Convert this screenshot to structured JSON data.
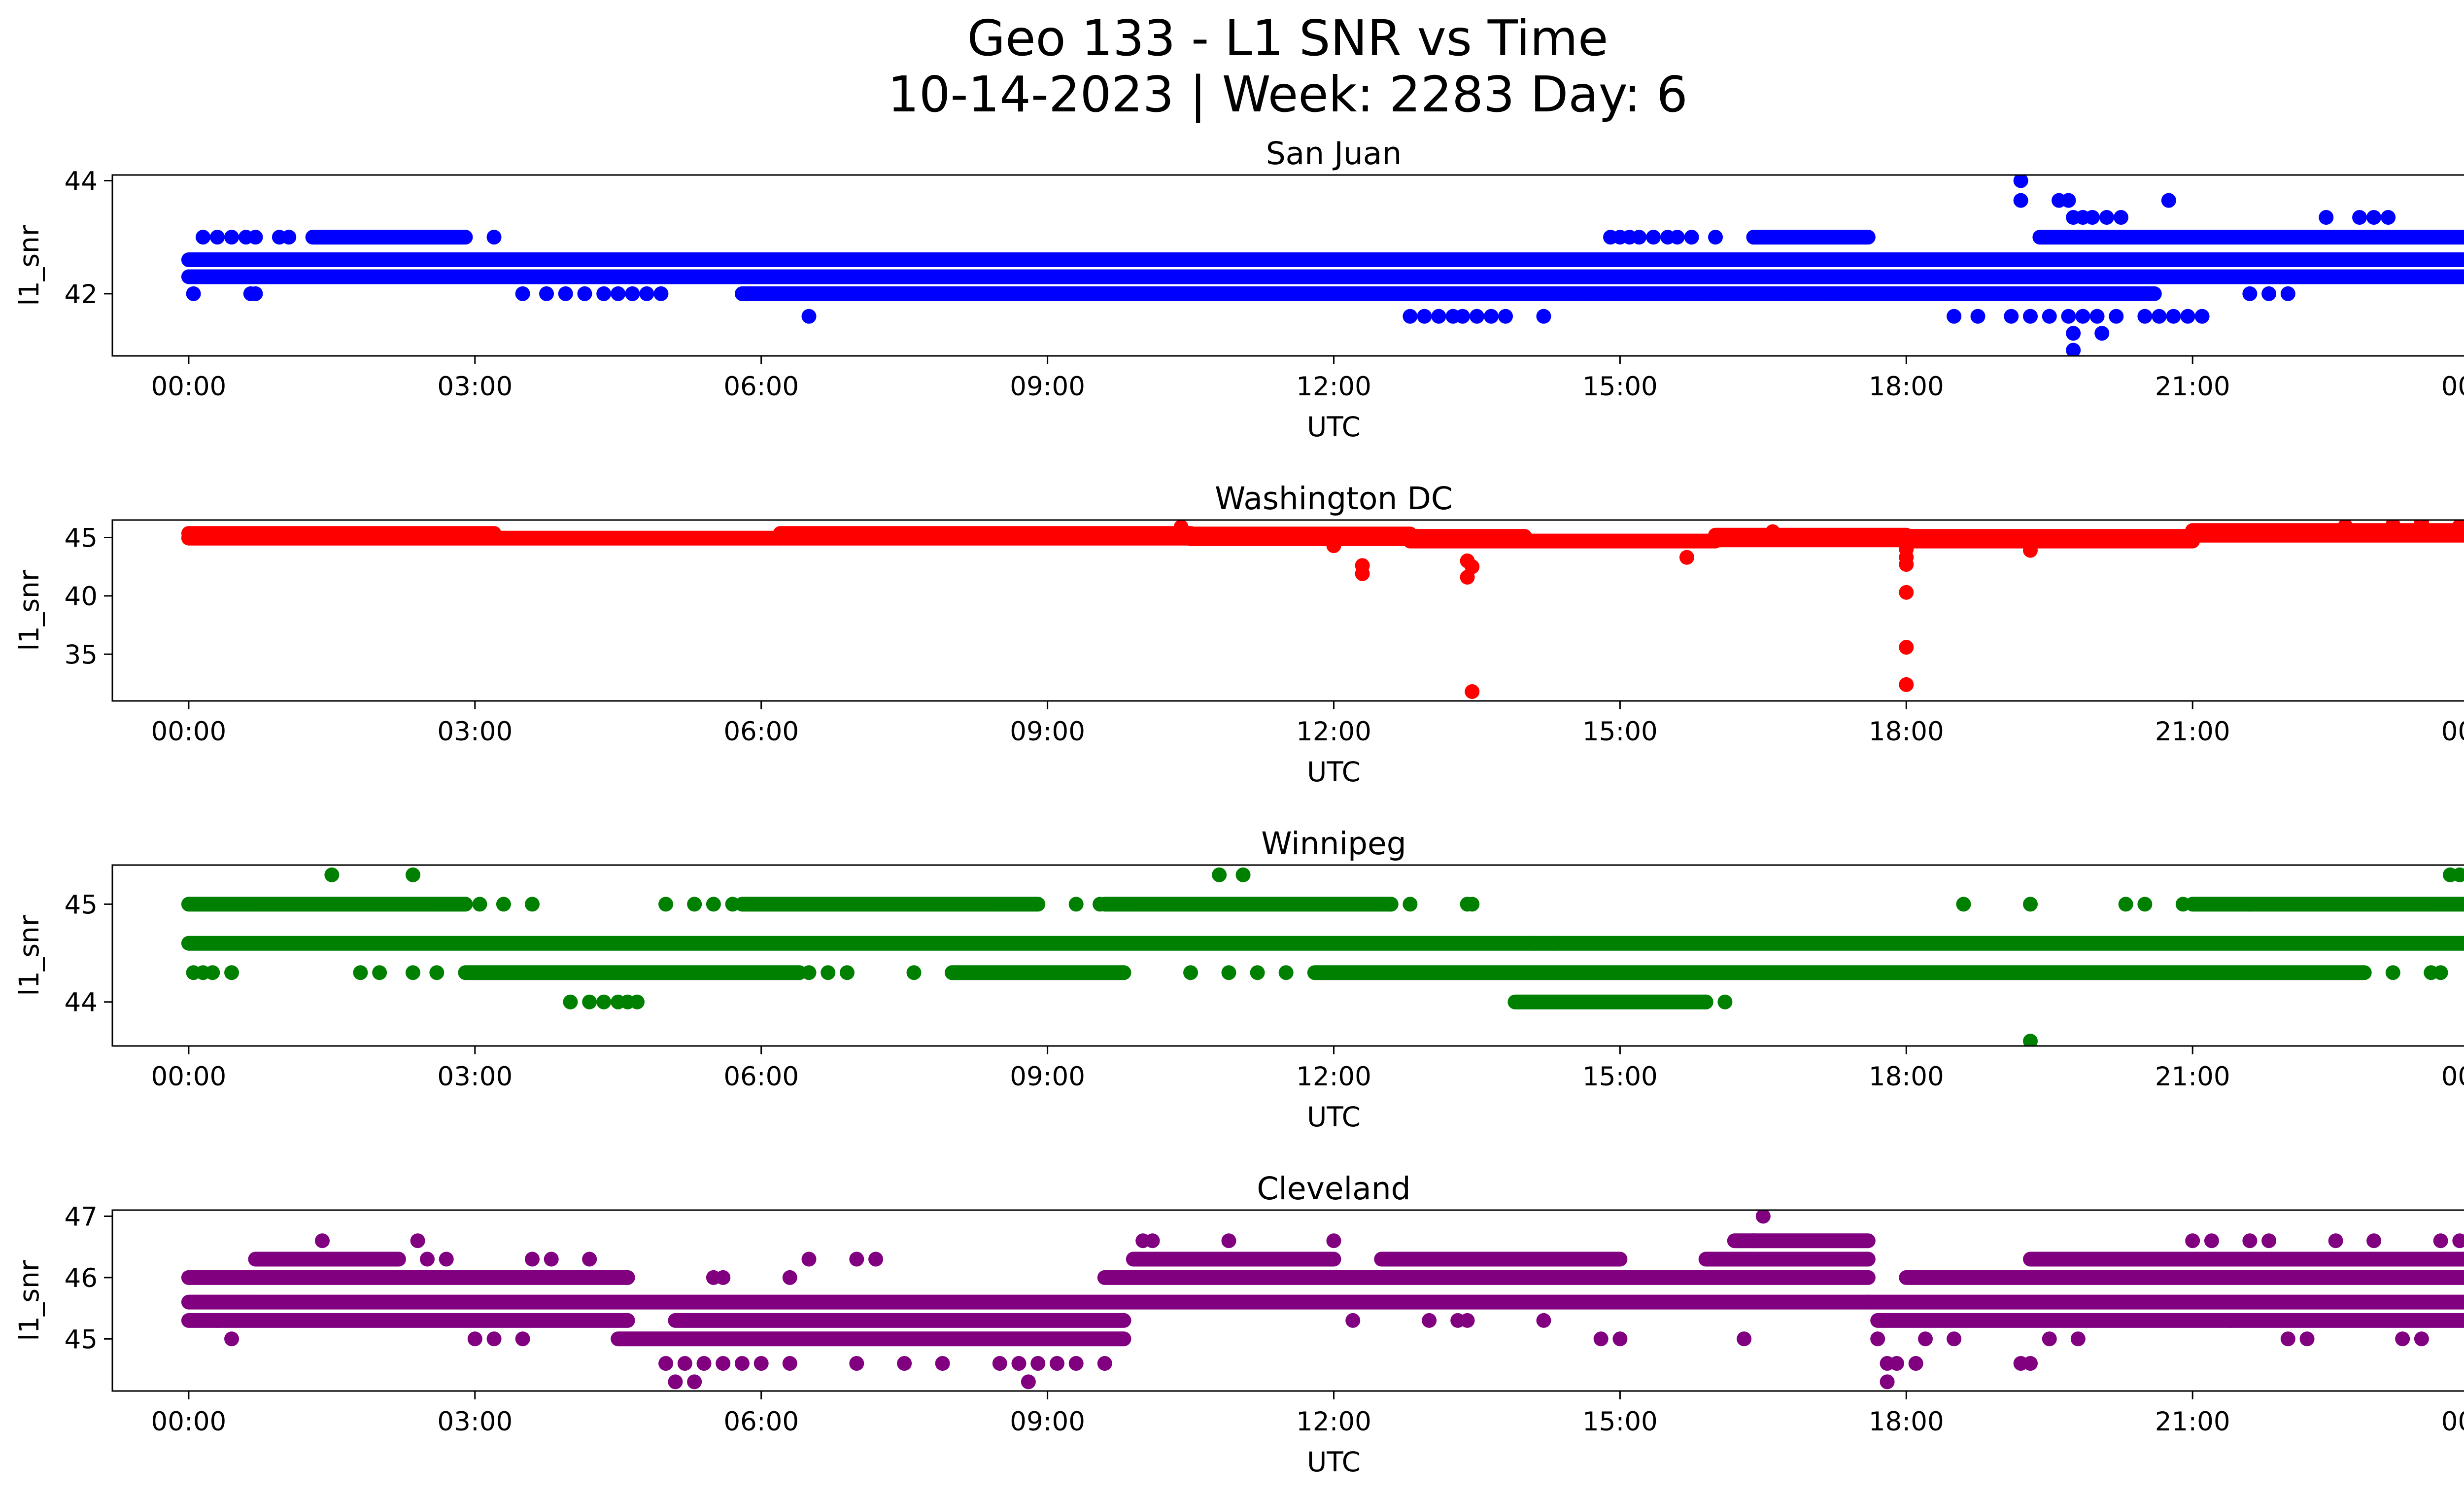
{
  "figure": {
    "title_line1": "Geo 133 - L1 SNR vs Time",
    "title_line2": "10-14-2023 | Week: 2283 Day: 6"
  },
  "chart_data": [
    {
      "type": "scatter",
      "title": "San Juan",
      "xlabel": "UTC",
      "ylabel": "l1_snr",
      "color": "#0000ff",
      "xlim": [
        -0.8,
        24.8
      ],
      "ylim": [
        40.9,
        44.1
      ],
      "xticks": [
        "00:00",
        "03:00",
        "06:00",
        "09:00",
        "12:00",
        "15:00",
        "18:00",
        "21:00",
        "00:00"
      ],
      "yticks": [
        42,
        44
      ],
      "bands": [
        {
          "y": 42.6,
          "from": 0.0,
          "to": 24.0
        },
        {
          "y": 42.3,
          "from": 0.0,
          "to": 24.0
        },
        {
          "y": 42.0,
          "from": 5.8,
          "to": 17.3
        },
        {
          "y": 42.0,
          "from": 17.3,
          "to": 20.6
        },
        {
          "y": 43.0,
          "from": 1.3,
          "to": 2.9
        },
        {
          "y": 43.0,
          "from": 16.4,
          "to": 17.6
        },
        {
          "y": 43.0,
          "from": 19.4,
          "to": 24.0
        }
      ],
      "points": [
        [
          0.05,
          42.0
        ],
        [
          0.15,
          43.0
        ],
        [
          0.3,
          43.0
        ],
        [
          0.45,
          43.0
        ],
        [
          0.6,
          43.0
        ],
        [
          0.7,
          43.0
        ],
        [
          0.65,
          42.0
        ],
        [
          0.7,
          42.0
        ],
        [
          0.95,
          43.0
        ],
        [
          1.05,
          43.0
        ],
        [
          3.2,
          43.0
        ],
        [
          3.5,
          42.0
        ],
        [
          3.75,
          42.0
        ],
        [
          3.95,
          42.0
        ],
        [
          4.15,
          42.0
        ],
        [
          4.35,
          42.0
        ],
        [
          4.5,
          42.0
        ],
        [
          4.65,
          42.0
        ],
        [
          4.8,
          42.0
        ],
        [
          4.95,
          42.0
        ],
        [
          6.5,
          41.6
        ],
        [
          6.55,
          42.6
        ],
        [
          6.65,
          42.6
        ],
        [
          6.8,
          42.6
        ],
        [
          7.1,
          42.6
        ],
        [
          7.5,
          42.6
        ],
        [
          7.8,
          42.6
        ],
        [
          8.2,
          42.6
        ],
        [
          8.4,
          42.6
        ],
        [
          8.7,
          42.6
        ],
        [
          9.5,
          42.6
        ],
        [
          9.7,
          42.6
        ],
        [
          10.0,
          42.6
        ],
        [
          10.2,
          42.6
        ],
        [
          10.35,
          42.6
        ],
        [
          11.2,
          42.6
        ],
        [
          11.4,
          42.6
        ],
        [
          11.55,
          42.6
        ],
        [
          11.8,
          42.6
        ],
        [
          12.2,
          42.6
        ],
        [
          12.8,
          41.6
        ],
        [
          12.95,
          41.6
        ],
        [
          13.1,
          41.6
        ],
        [
          13.25,
          41.6
        ],
        [
          13.35,
          41.6
        ],
        [
          13.5,
          41.6
        ],
        [
          13.65,
          41.6
        ],
        [
          13.8,
          41.6
        ],
        [
          14.2,
          41.6
        ],
        [
          13.3,
          42.6
        ],
        [
          13.5,
          42.6
        ],
        [
          13.8,
          42.6
        ],
        [
          14.05,
          42.6
        ],
        [
          14.4,
          42.6
        ],
        [
          14.6,
          42.6
        ],
        [
          14.9,
          42.6
        ],
        [
          14.9,
          43.0
        ],
        [
          15.0,
          43.0
        ],
        [
          15.1,
          43.0
        ],
        [
          15.2,
          43.0
        ],
        [
          15.35,
          43.0
        ],
        [
          15.5,
          43.0
        ],
        [
          15.6,
          43.0
        ],
        [
          15.75,
          43.0
        ],
        [
          16.0,
          43.0
        ],
        [
          14.5,
          42.0
        ],
        [
          14.7,
          42.0
        ],
        [
          14.9,
          42.0
        ],
        [
          15.3,
          42.0
        ],
        [
          15.7,
          42.0
        ],
        [
          15.85,
          42.0
        ],
        [
          16.0,
          42.0
        ],
        [
          16.8,
          42.0
        ],
        [
          17.2,
          42.0
        ],
        [
          18.5,
          41.6
        ],
        [
          18.75,
          41.6
        ],
        [
          19.1,
          41.6
        ],
        [
          19.3,
          41.6
        ],
        [
          19.5,
          41.6
        ],
        [
          19.7,
          41.6
        ],
        [
          19.85,
          41.6
        ],
        [
          20.0,
          41.6
        ],
        [
          20.2,
          41.6
        ],
        [
          20.5,
          41.6
        ],
        [
          20.65,
          41.6
        ],
        [
          20.8,
          41.6
        ],
        [
          20.95,
          41.6
        ],
        [
          21.1,
          41.6
        ],
        [
          19.75,
          41.3
        ],
        [
          19.75,
          41.0
        ],
        [
          20.05,
          41.3
        ],
        [
          19.2,
          44.0
        ],
        [
          19.2,
          43.65
        ],
        [
          19.6,
          43.65
        ],
        [
          19.7,
          43.65
        ],
        [
          19.75,
          43.35
        ],
        [
          19.85,
          43.35
        ],
        [
          19.95,
          43.35
        ],
        [
          20.1,
          43.35
        ],
        [
          20.25,
          43.35
        ],
        [
          20.75,
          43.65
        ],
        [
          22.4,
          43.35
        ],
        [
          22.75,
          43.35
        ],
        [
          22.9,
          43.35
        ],
        [
          23.05,
          43.35
        ],
        [
          22.0,
          42.0
        ],
        [
          21.6,
          42.0
        ],
        [
          21.8,
          42.0
        ],
        [
          18.0,
          42.6
        ],
        [
          18.8,
          42.6
        ],
        [
          18.95,
          42.6
        ],
        [
          23.9,
          43.0
        ]
      ]
    },
    {
      "type": "scatter",
      "title": "Washington DC",
      "xlabel": "UTC",
      "ylabel": "l1_snr",
      "color": "#ff0000",
      "xlim": [
        -0.8,
        24.8
      ],
      "ylim": [
        31.0,
        46.5
      ],
      "xticks": [
        "00:00",
        "03:00",
        "06:00",
        "09:00",
        "12:00",
        "15:00",
        "18:00",
        "21:00",
        "00:00"
      ],
      "yticks": [
        35,
        40,
        45
      ],
      "bands": [
        {
          "y": 45.35,
          "from": 0.0,
          "to": 3.2
        },
        {
          "y": 44.95,
          "from": 0.0,
          "to": 3.2
        },
        {
          "y": 44.95,
          "from": 3.2,
          "to": 6.2
        },
        {
          "y": 45.35,
          "from": 6.2,
          "to": 10.5
        },
        {
          "y": 44.95,
          "from": 6.2,
          "to": 10.5
        },
        {
          "y": 45.3,
          "from": 10.5,
          "to": 12.8
        },
        {
          "y": 44.9,
          "from": 10.5,
          "to": 12.8
        },
        {
          "y": 44.7,
          "from": 12.8,
          "to": 16.0
        },
        {
          "y": 45.1,
          "from": 12.8,
          "to": 14.0
        },
        {
          "y": 45.2,
          "from": 16.0,
          "to": 18.0
        },
        {
          "y": 44.8,
          "from": 16.0,
          "to": 18.0
        },
        {
          "y": 45.1,
          "from": 18.0,
          "to": 21.0
        },
        {
          "y": 44.7,
          "from": 18.0,
          "to": 21.0
        },
        {
          "y": 45.6,
          "from": 21.0,
          "to": 24.0
        },
        {
          "y": 45.2,
          "from": 21.0,
          "to": 24.0
        }
      ],
      "points": [
        [
          12.3,
          42.6
        ],
        [
          12.3,
          41.9
        ],
        [
          13.4,
          43.0
        ],
        [
          13.4,
          41.6
        ],
        [
          13.45,
          42.5
        ],
        [
          13.45,
          31.8
        ],
        [
          15.7,
          43.3
        ],
        [
          18.0,
          44.0
        ],
        [
          18.0,
          43.3
        ],
        [
          18.0,
          42.7
        ],
        [
          18.0,
          40.3
        ],
        [
          18.0,
          35.6
        ],
        [
          18.0,
          32.4
        ],
        [
          19.3,
          43.9
        ],
        [
          10.4,
          45.9
        ],
        [
          12.0,
          44.3
        ],
        [
          16.6,
          45.5
        ],
        [
          22.6,
          46.0
        ],
        [
          23.4,
          46.3
        ],
        [
          23.1,
          46.1
        ],
        [
          23.8,
          46.0
        ]
      ]
    },
    {
      "type": "scatter",
      "title": "Winnipeg",
      "xlabel": "UTC",
      "ylabel": "l1_snr",
      "color": "#008000",
      "xlim": [
        -0.8,
        24.8
      ],
      "ylim": [
        43.55,
        45.4
      ],
      "xticks": [
        "00:00",
        "03:00",
        "06:00",
        "09:00",
        "12:00",
        "15:00",
        "18:00",
        "21:00",
        "00:00"
      ],
      "yticks": [
        44,
        45
      ],
      "bands": [
        {
          "y": 44.6,
          "from": 0.0,
          "to": 24.0
        },
        {
          "y": 45.0,
          "from": 0.0,
          "to": 2.9
        },
        {
          "y": 45.0,
          "from": 5.8,
          "to": 8.9
        },
        {
          "y": 45.0,
          "from": 9.6,
          "to": 12.6
        },
        {
          "y": 45.0,
          "from": 21.0,
          "to": 24.0
        },
        {
          "y": 44.3,
          "from": 2.9,
          "to": 6.4
        },
        {
          "y": 44.3,
          "from": 8.0,
          "to": 9.8
        },
        {
          "y": 44.3,
          "from": 11.8,
          "to": 22.8
        },
        {
          "y": 44.0,
          "from": 13.9,
          "to": 15.9
        }
      ],
      "points": [
        [
          1.5,
          45.3
        ],
        [
          2.35,
          45.3
        ],
        [
          10.8,
          45.3
        ],
        [
          11.05,
          45.3
        ],
        [
          23.7,
          45.3
        ],
        [
          23.8,
          45.3
        ],
        [
          3.05,
          45.0
        ],
        [
          3.3,
          45.0
        ],
        [
          3.6,
          45.0
        ],
        [
          5.0,
          45.0
        ],
        [
          5.3,
          45.0
        ],
        [
          5.5,
          45.0
        ],
        [
          5.7,
          45.0
        ],
        [
          9.3,
          45.0
        ],
        [
          9.55,
          45.0
        ],
        [
          12.6,
          45.0
        ],
        [
          12.8,
          45.0
        ],
        [
          13.4,
          45.0
        ],
        [
          13.45,
          45.0
        ],
        [
          18.6,
          45.0
        ],
        [
          19.3,
          45.0
        ],
        [
          20.3,
          45.0
        ],
        [
          20.5,
          45.0
        ],
        [
          20.9,
          45.0
        ],
        [
          21.6,
          45.0
        ],
        [
          0.05,
          44.3
        ],
        [
          0.15,
          44.3
        ],
        [
          0.25,
          44.3
        ],
        [
          0.45,
          44.3
        ],
        [
          1.8,
          44.3
        ],
        [
          2.0,
          44.3
        ],
        [
          2.35,
          44.3
        ],
        [
          2.6,
          44.3
        ],
        [
          6.5,
          44.3
        ],
        [
          6.7,
          44.3
        ],
        [
          6.9,
          44.3
        ],
        [
          7.6,
          44.3
        ],
        [
          10.5,
          44.3
        ],
        [
          10.9,
          44.3
        ],
        [
          11.2,
          44.3
        ],
        [
          11.5,
          44.3
        ],
        [
          23.1,
          44.3
        ],
        [
          23.5,
          44.3
        ],
        [
          23.6,
          44.3
        ],
        [
          4.0,
          44.0
        ],
        [
          4.2,
          44.0
        ],
        [
          4.35,
          44.0
        ],
        [
          4.5,
          44.0
        ],
        [
          4.6,
          44.0
        ],
        [
          4.7,
          44.0
        ],
        [
          16.1,
          44.0
        ],
        [
          15.9,
          44.0
        ],
        [
          14.1,
          44.6
        ],
        [
          14.3,
          44.6
        ],
        [
          19.3,
          43.6
        ]
      ]
    },
    {
      "type": "scatter",
      "title": "Cleveland",
      "xlabel": "UTC",
      "ylabel": "l1_snr",
      "color": "#800080",
      "xlim": [
        -0.8,
        24.8
      ],
      "ylim": [
        44.15,
        47.1
      ],
      "xticks": [
        "00:00",
        "03:00",
        "06:00",
        "09:00",
        "12:00",
        "15:00",
        "18:00",
        "21:00",
        "00:00"
      ],
      "yticks": [
        45,
        46,
        47
      ],
      "bands": [
        {
          "y": 45.6,
          "from": 0.0,
          "to": 24.0
        },
        {
          "y": 46.0,
          "from": 0.0,
          "to": 4.6
        },
        {
          "y": 45.3,
          "from": 0.0,
          "to": 4.6
        },
        {
          "y": 46.3,
          "from": 0.7,
          "to": 2.2
        },
        {
          "y": 45.3,
          "from": 5.1,
          "to": 9.8
        },
        {
          "y": 45.0,
          "from": 4.5,
          "to": 9.8
        },
        {
          "y": 46.0,
          "from": 9.6,
          "to": 17.6
        },
        {
          "y": 46.3,
          "from": 9.9,
          "to": 12.0
        },
        {
          "y": 46.3,
          "from": 12.5,
          "to": 15.0
        },
        {
          "y": 46.6,
          "from": 16.2,
          "to": 17.6
        },
        {
          "y": 46.3,
          "from": 15.9,
          "to": 17.6
        },
        {
          "y": 46.0,
          "from": 18.0,
          "to": 24.0
        },
        {
          "y": 45.3,
          "from": 17.7,
          "to": 24.0
        },
        {
          "y": 46.3,
          "from": 19.3,
          "to": 24.0
        }
      ],
      "points": [
        [
          0.3,
          45.3
        ],
        [
          0.45,
          45.0
        ],
        [
          1.4,
          46.6
        ],
        [
          2.4,
          46.6
        ],
        [
          2.7,
          46.3
        ],
        [
          2.5,
          46.3
        ],
        [
          3.0,
          45.0
        ],
        [
          3.2,
          45.0
        ],
        [
          3.5,
          45.0
        ],
        [
          4.2,
          46.3
        ],
        [
          3.6,
          46.3
        ],
        [
          3.8,
          46.3
        ],
        [
          5.0,
          44.6
        ],
        [
          5.2,
          44.6
        ],
        [
          5.4,
          44.6
        ],
        [
          5.6,
          44.6
        ],
        [
          5.8,
          44.6
        ],
        [
          6.0,
          44.6
        ],
        [
          6.3,
          44.6
        ],
        [
          5.1,
          44.3
        ],
        [
          5.3,
          44.3
        ],
        [
          8.8,
          44.3
        ],
        [
          8.5,
          44.6
        ],
        [
          8.7,
          44.6
        ],
        [
          8.9,
          44.6
        ],
        [
          9.1,
          44.6
        ],
        [
          9.3,
          44.6
        ],
        [
          9.6,
          44.6
        ],
        [
          7.0,
          44.6
        ],
        [
          7.5,
          44.6
        ],
        [
          7.9,
          44.6
        ],
        [
          6.3,
          46.0
        ],
        [
          6.5,
          46.3
        ],
        [
          7.0,
          46.3
        ],
        [
          7.2,
          46.3
        ],
        [
          5.5,
          46.0
        ],
        [
          5.6,
          46.0
        ],
        [
          10.0,
          46.6
        ],
        [
          10.1,
          46.6
        ],
        [
          10.9,
          46.6
        ],
        [
          12.0,
          46.6
        ],
        [
          12.2,
          45.3
        ],
        [
          13.0,
          45.3
        ],
        [
          13.3,
          45.3
        ],
        [
          13.4,
          45.3
        ],
        [
          14.2,
          45.3
        ],
        [
          15.0,
          45.0
        ],
        [
          14.8,
          45.0
        ],
        [
          16.3,
          45.0
        ],
        [
          16.5,
          47.0
        ],
        [
          16.4,
          46.6
        ],
        [
          17.8,
          44.3
        ],
        [
          17.8,
          44.6
        ],
        [
          17.9,
          44.6
        ],
        [
          18.1,
          44.6
        ],
        [
          17.6,
          45.6
        ],
        [
          17.7,
          45.0
        ],
        [
          18.2,
          45.0
        ],
        [
          18.5,
          45.0
        ],
        [
          19.2,
          44.6
        ],
        [
          19.3,
          44.6
        ],
        [
          19.5,
          45.0
        ],
        [
          19.8,
          45.0
        ],
        [
          21.0,
          46.6
        ],
        [
          21.2,
          46.6
        ],
        [
          21.6,
          46.6
        ],
        [
          21.8,
          46.6
        ],
        [
          22.5,
          46.6
        ],
        [
          22.9,
          46.6
        ],
        [
          23.6,
          46.6
        ],
        [
          23.8,
          46.6
        ],
        [
          22.0,
          45.0
        ],
        [
          22.2,
          45.0
        ],
        [
          23.2,
          45.0
        ],
        [
          23.4,
          45.0
        ],
        [
          21.4,
          45.3
        ]
      ]
    }
  ]
}
